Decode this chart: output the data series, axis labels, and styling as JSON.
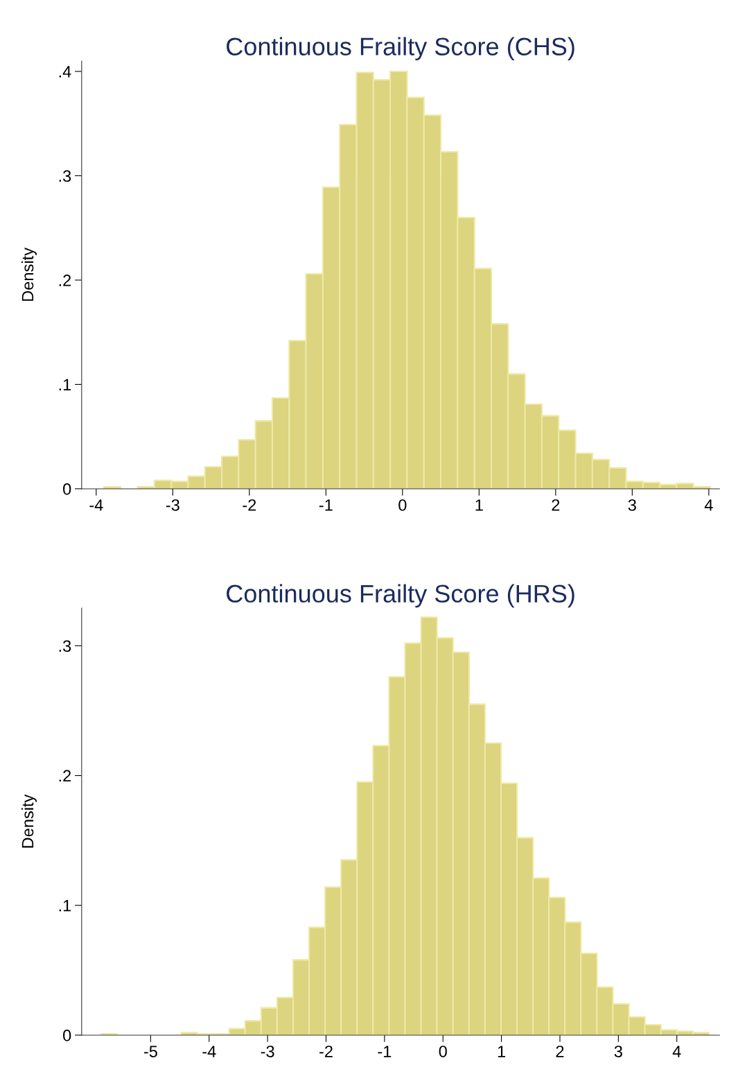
{
  "chart_data": [
    {
      "type": "histogram",
      "title": "Continuous Frailty Score (CHS)",
      "ylabel": "Density",
      "color": "#dcd47e",
      "bins": [
        -3.9,
        -3.68,
        -3.46,
        -3.24,
        -3.02,
        -2.8,
        -2.58,
        -2.36,
        -2.14,
        -1.92,
        -1.7,
        -1.48,
        -1.26,
        -1.04,
        -0.82,
        -0.6,
        -0.38,
        -0.16,
        0.06,
        0.28,
        0.5,
        0.72,
        0.94,
        1.16,
        1.38,
        1.6,
        1.82,
        2.04,
        2.26,
        2.48,
        2.7,
        2.92,
        3.14,
        3.36,
        3.58,
        3.8,
        4.02
      ],
      "values": [
        0.002,
        0,
        0.002,
        0.008,
        0.007,
        0.012,
        0.021,
        0.031,
        0.047,
        0.065,
        0.087,
        0.142,
        0.206,
        0.289,
        0.349,
        0.399,
        0.392,
        0.4,
        0.375,
        0.358,
        0.323,
        0.26,
        0.211,
        0.158,
        0.11,
        0.081,
        0.07,
        0.056,
        0.034,
        0.028,
        0.02,
        0.007,
        0.006,
        0.004,
        0.005,
        0.002
      ],
      "xlim": [
        -4.19,
        4.14
      ],
      "xticks": [
        -4,
        -3,
        -2,
        -1,
        0,
        1,
        2,
        3,
        4
      ],
      "ylim": [
        0,
        0.41
      ],
      "yticks": [
        0,
        {
          "value": 0.1,
          "label": ".1"
        },
        {
          "value": 0.2,
          "label": ".2"
        },
        {
          "value": 0.3,
          "label": ".3"
        },
        {
          "value": 0.4,
          "label": ".4"
        }
      ],
      "grid": false
    },
    {
      "type": "histogram",
      "title": "Continuous Frailty Score (HRS)",
      "ylabel": "Density",
      "color": "#dcd47e",
      "bins": [
        -5.845,
        -5.572,
        -5.298,
        -5.025,
        -4.751,
        -4.478,
        -4.204,
        -3.931,
        -3.657,
        -3.384,
        -3.11,
        -2.837,
        -2.563,
        -2.29,
        -2.016,
        -1.743,
        -1.469,
        -1.196,
        -0.922,
        -0.649,
        -0.375,
        -0.102,
        0.172,
        0.446,
        0.719,
        0.993,
        1.266,
        1.54,
        1.813,
        2.087,
        2.36,
        2.634,
        2.907,
        3.181,
        3.454,
        3.728,
        4.001,
        4.275,
        4.548
      ],
      "values": [
        0.001,
        0,
        0,
        0,
        0,
        0.002,
        0.001,
        0.001,
        0.005,
        0.011,
        0.021,
        0.029,
        0.058,
        0.083,
        0.114,
        0.135,
        0.195,
        0.223,
        0.276,
        0.302,
        0.322,
        0.306,
        0.295,
        0.255,
        0.225,
        0.194,
        0.152,
        0.121,
        0.106,
        0.087,
        0.063,
        0.037,
        0.024,
        0.014,
        0.008,
        0.004,
        0.003,
        0.002
      ],
      "xlim": [
        -6.18,
        4.73
      ],
      "xticks": [
        -5,
        -4,
        -3,
        -2,
        -1,
        0,
        1,
        2,
        3,
        4
      ],
      "ylim": [
        0,
        0.329
      ],
      "yticks": [
        0,
        {
          "value": 0.1,
          "label": ".1"
        },
        {
          "value": 0.2,
          "label": ".2"
        },
        {
          "value": 0.3,
          "label": ".3"
        }
      ],
      "grid": false
    }
  ]
}
